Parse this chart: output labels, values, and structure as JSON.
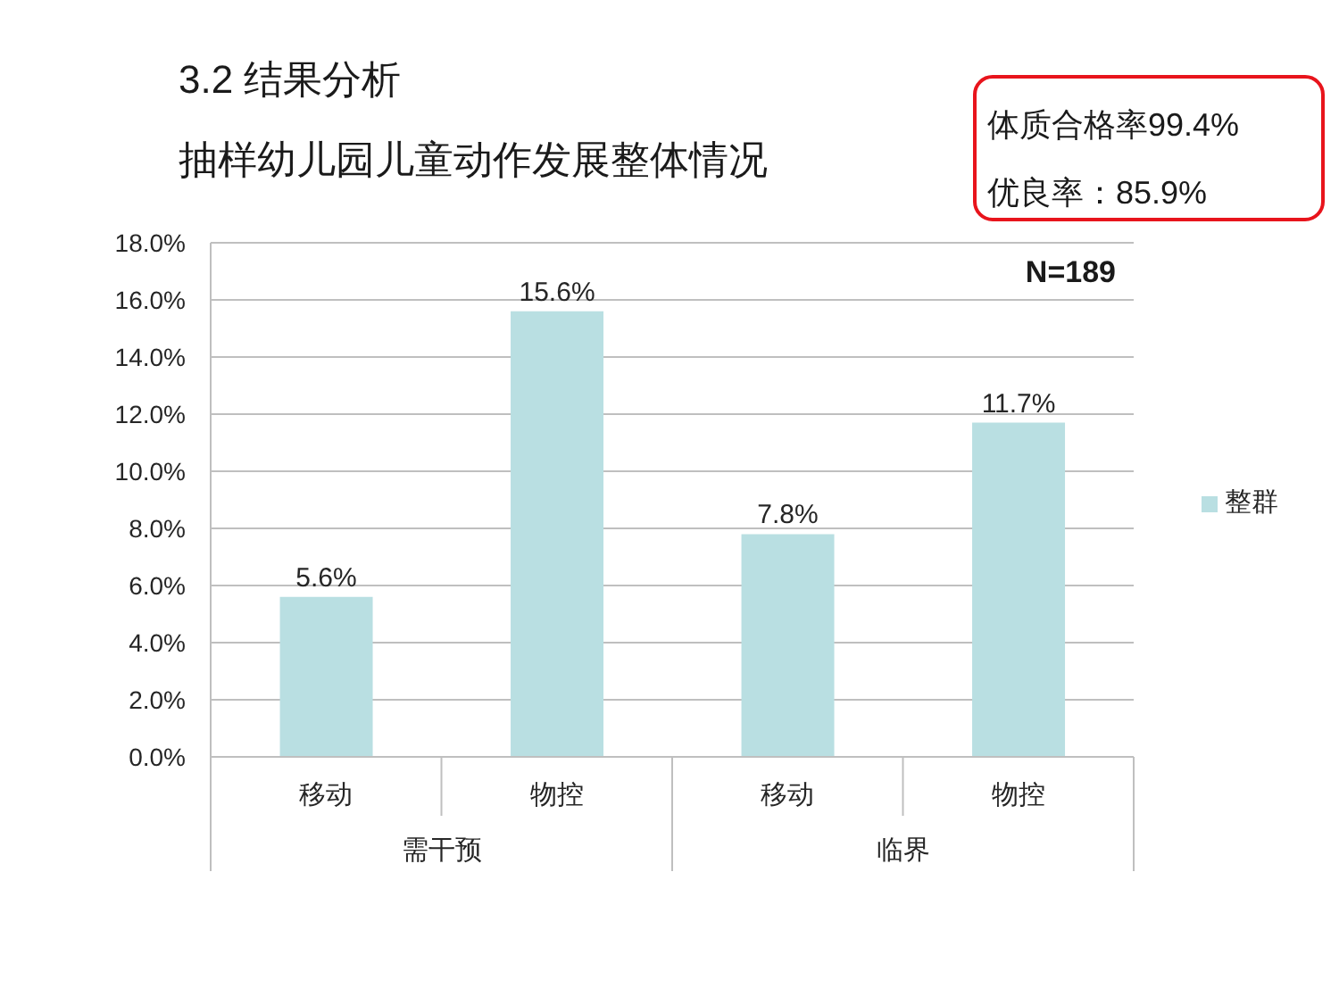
{
  "chart_data": {
    "type": "bar",
    "title": "3.2 结果分析",
    "subtitle": "抽样幼儿园儿童动作发展整体情况",
    "categories": [
      "移动",
      "物控",
      "移动",
      "物控"
    ],
    "series": [
      {
        "name": "整群",
        "color": "#b9dfe2",
        "values": [
          5.6,
          15.6,
          7.8,
          11.7
        ],
        "value_labels": [
          "5.6%",
          "15.6%",
          "7.8%",
          "11.7%"
        ]
      }
    ],
    "ylim": [
      0,
      18
    ],
    "yticks": [
      {
        "value": 0,
        "label": "0.0%"
      },
      {
        "value": 2,
        "label": "2.0%"
      },
      {
        "value": 4,
        "label": "4.0%"
      },
      {
        "value": 6,
        "label": "6.0%"
      },
      {
        "value": 8,
        "label": "8.0%"
      },
      {
        "value": 10,
        "label": "10.0%"
      },
      {
        "value": 12,
        "label": "12.0%"
      },
      {
        "value": 14,
        "label": "14.0%"
      },
      {
        "value": 16,
        "label": "16.0%"
      },
      {
        "value": 18,
        "label": "18.0%"
      }
    ],
    "grid": "y",
    "legend": "right",
    "annotations": [
      "体质合格率99.4%",
      "优良率：85.9%",
      "N=189",
      "需干预",
      "临界"
    ]
  }
}
